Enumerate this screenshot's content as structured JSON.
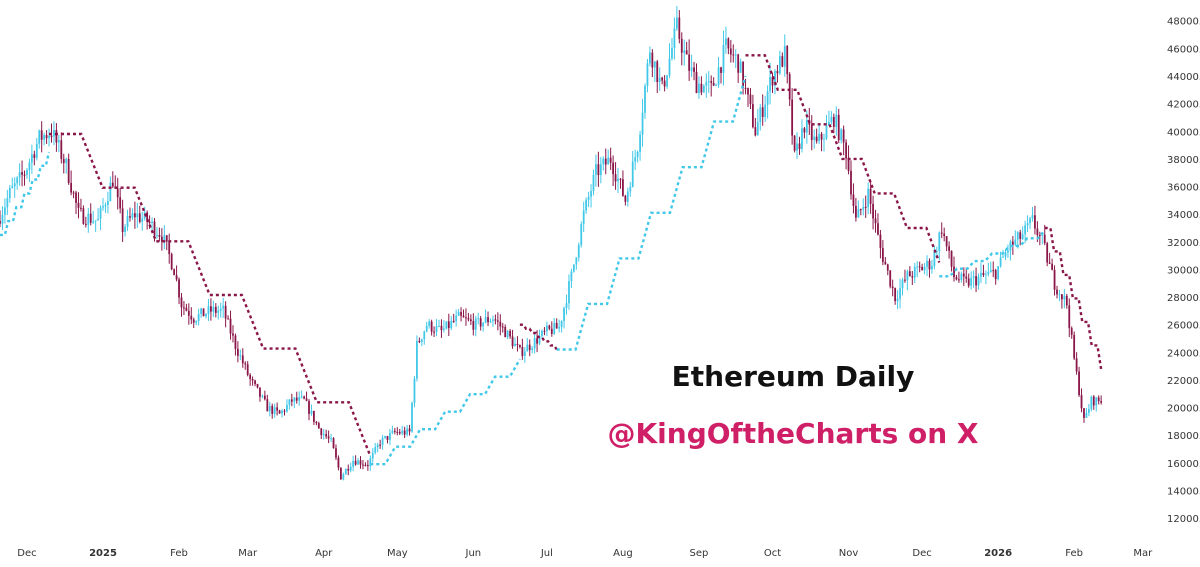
{
  "chart_data": {
    "type": "candlestick",
    "title": "Ethereum Daily",
    "xlabel": "",
    "ylabel": "",
    "ylim": [
      11500,
      49500
    ],
    "y_ticks": [
      "12000.0",
      "14000.0",
      "16000.0",
      "18000.0",
      "20000.0",
      "22000.0",
      "24000.0",
      "26000.0",
      "28000.0",
      "30000.0",
      "32000.0",
      "34000.0",
      "36000.0",
      "38000.0",
      "40000.0",
      "42000.0",
      "44000.0",
      "46000.0",
      "48000.0"
    ],
    "x_ticks": [
      {
        "label": "Dec",
        "date": "2024-12-01"
      },
      {
        "label": "2025",
        "date": "2025-01-01",
        "bold": true
      },
      {
        "label": "Feb",
        "date": "2025-02-01"
      },
      {
        "label": "Mar",
        "date": "2025-03-01"
      },
      {
        "label": "Apr",
        "date": "2025-04-01"
      },
      {
        "label": "May",
        "date": "2025-05-01"
      },
      {
        "label": "Jun",
        "date": "2025-06-01"
      },
      {
        "label": "Jul",
        "date": "2025-07-01"
      },
      {
        "label": "Aug",
        "date": "2025-08-01"
      },
      {
        "label": "Sep",
        "date": "2025-09-01"
      },
      {
        "label": "Oct",
        "date": "2025-10-01"
      },
      {
        "label": "Nov",
        "date": "2025-11-01"
      },
      {
        "label": "Dec",
        "date": "2025-12-01"
      },
      {
        "label": "2026",
        "date": "2026-01-01",
        "bold": true
      },
      {
        "label": "Feb",
        "date": "2026-02-01"
      },
      {
        "label": "Mar",
        "date": "2026-03-01"
      }
    ],
    "x_range": [
      "2024-11-20",
      "2026-03-08"
    ],
    "grid": false,
    "bull_color": "#41c8e8",
    "bear_color": "#8a1548",
    "annotations": [
      {
        "text": "Ethereum Daily",
        "color": "#111111"
      },
      {
        "text": "@KingOftheCharts on X",
        "color": "#cf1f67"
      }
    ],
    "price_path": [
      [
        "2024-11-20",
        33500
      ],
      [
        "2024-11-25",
        35500
      ],
      [
        "2024-12-01",
        37000
      ],
      [
        "2024-12-07",
        39500
      ],
      [
        "2024-12-12",
        40000
      ],
      [
        "2024-12-18",
        37500
      ],
      [
        "2024-12-23",
        34000
      ],
      [
        "2024-12-31",
        33500
      ],
      [
        "2025-01-06",
        36500
      ],
      [
        "2025-01-10",
        33000
      ],
      [
        "2025-01-15",
        34000
      ],
      [
        "2025-01-20",
        33500
      ],
      [
        "2025-01-26",
        32500
      ],
      [
        "2025-01-31",
        30000
      ],
      [
        "2025-02-03",
        27500
      ],
      [
        "2025-02-08",
        26500
      ],
      [
        "2025-02-15",
        27000
      ],
      [
        "2025-02-20",
        27000
      ],
      [
        "2025-02-25",
        24500
      ],
      [
        "2025-03-03",
        22000
      ],
      [
        "2025-03-10",
        20000
      ],
      [
        "2025-03-15",
        19500
      ],
      [
        "2025-03-20",
        20500
      ],
      [
        "2025-03-25",
        20500
      ],
      [
        "2025-03-31",
        18500
      ],
      [
        "2025-04-05",
        17500
      ],
      [
        "2025-04-09",
        15000
      ],
      [
        "2025-04-14",
        16200
      ],
      [
        "2025-04-20",
        15900
      ],
      [
        "2025-04-25",
        17500
      ],
      [
        "2025-05-01",
        18200
      ],
      [
        "2025-05-07",
        18200
      ],
      [
        "2025-05-10",
        24500
      ],
      [
        "2025-05-14",
        26000
      ],
      [
        "2025-05-20",
        25500
      ],
      [
        "2025-05-27",
        26500
      ],
      [
        "2025-06-03",
        26000
      ],
      [
        "2025-06-10",
        26500
      ],
      [
        "2025-06-15",
        25500
      ],
      [
        "2025-06-21",
        24000
      ],
      [
        "2025-06-25",
        24500
      ],
      [
        "2025-07-02",
        25500
      ],
      [
        "2025-07-07",
        25800
      ],
      [
        "2025-07-12",
        29500
      ],
      [
        "2025-07-17",
        34000
      ],
      [
        "2025-07-22",
        37000
      ],
      [
        "2025-07-28",
        38000
      ],
      [
        "2025-08-03",
        35000
      ],
      [
        "2025-08-08",
        39000
      ],
      [
        "2025-08-13",
        46000
      ],
      [
        "2025-08-18",
        43000
      ],
      [
        "2025-08-24",
        47500
      ],
      [
        "2025-08-28",
        45000
      ],
      [
        "2025-09-01",
        43500
      ],
      [
        "2025-09-07",
        43000
      ],
      [
        "2025-09-13",
        46000
      ],
      [
        "2025-09-18",
        45000
      ],
      [
        "2025-09-25",
        40000
      ],
      [
        "2025-10-02",
        44000
      ],
      [
        "2025-10-07",
        45500
      ],
      [
        "2025-10-11",
        38000
      ],
      [
        "2025-10-15",
        40500
      ],
      [
        "2025-10-20",
        39000
      ],
      [
        "2025-10-27",
        41000
      ],
      [
        "2025-11-01",
        38500
      ],
      [
        "2025-11-05",
        33500
      ],
      [
        "2025-11-10",
        35500
      ],
      [
        "2025-11-15",
        31500
      ],
      [
        "2025-11-21",
        28000
      ],
      [
        "2025-11-26",
        29500
      ],
      [
        "2025-12-01",
        30000
      ],
      [
        "2025-12-06",
        30500
      ],
      [
        "2025-12-10",
        33000
      ],
      [
        "2025-12-15",
        29500
      ],
      [
        "2025-12-20",
        29000
      ],
      [
        "2025-12-27",
        29500
      ],
      [
        "2026-01-01",
        29800
      ],
      [
        "2026-01-06",
        31500
      ],
      [
        "2026-01-12",
        32500
      ],
      [
        "2026-01-16",
        33500
      ],
      [
        "2026-01-20",
        32000
      ],
      [
        "2026-01-25",
        29000
      ],
      [
        "2026-01-30",
        27500
      ],
      [
        "2026-02-02",
        23500
      ],
      [
        "2026-02-06",
        19000
      ],
      [
        "2026-02-09",
        20500
      ],
      [
        "2026-02-12",
        20500
      ]
    ],
    "supertrend": [
      {
        "trend": "up",
        "from": "2024-11-20",
        "to": "2024-12-10",
        "start": 32500,
        "end": 38500
      },
      {
        "trend": "down",
        "from": "2024-12-10",
        "to": "2025-04-20",
        "start": 39800,
        "end": 16500
      },
      {
        "trend": "up",
        "from": "2025-04-20",
        "to": "2025-06-20",
        "start": 15900,
        "end": 23500
      },
      {
        "trend": "down",
        "from": "2025-06-20",
        "to": "2025-07-05",
        "start": 26000,
        "end": 24200
      },
      {
        "trend": "up",
        "from": "2025-07-05",
        "to": "2025-09-20",
        "start": 24200,
        "end": 44000
      },
      {
        "trend": "down",
        "from": "2025-09-20",
        "to": "2025-12-08",
        "start": 45500,
        "end": 30500
      },
      {
        "trend": "up",
        "from": "2025-12-08",
        "to": "2026-01-20",
        "start": 29500,
        "end": 32800
      },
      {
        "trend": "down",
        "from": "2026-01-20",
        "to": "2026-02-12",
        "start": 33000,
        "end": 22800
      }
    ]
  }
}
